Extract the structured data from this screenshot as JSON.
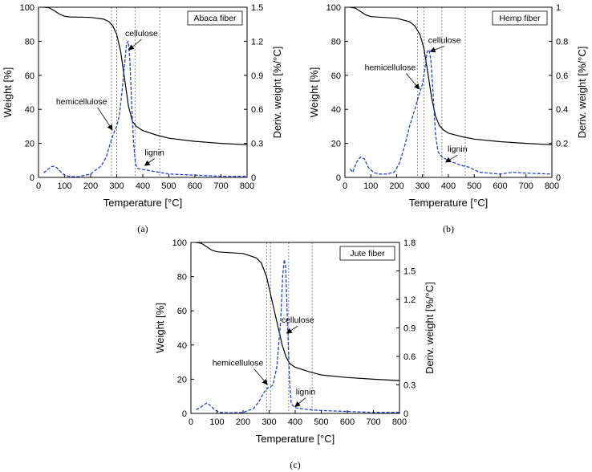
{
  "chart_data": [
    {
      "type": "line",
      "panel_caption": "(a)",
      "legend_label": "Abaca fiber",
      "xlabel": "Temperature [°C]",
      "ylabel_left": "Weight [%]",
      "ylabel_right": "Deriv. weight [%/°C]",
      "xlim": [
        0,
        800
      ],
      "ylim_left": [
        0,
        100
      ],
      "ylim_right": [
        0,
        1.5
      ],
      "x_ticks": [
        "0",
        "100",
        "200",
        "300",
        "400",
        "500",
        "600",
        "700",
        "800"
      ],
      "y_left_ticks": [
        "0",
        "20",
        "40",
        "60",
        "80",
        "100"
      ],
      "y_right_ticks": [
        "0",
        "0.3",
        "0.6",
        "0.9",
        "1.2",
        "1.5"
      ],
      "vlines": [
        280,
        300,
        370,
        465
      ],
      "annotations": [
        {
          "text": "cellulose",
          "x": 395,
          "y": 83,
          "arrow_to": [
            347,
            75
          ]
        },
        {
          "text": "hemicellulose",
          "x": 165,
          "y": 43,
          "arrow_to": [
            283,
            28
          ]
        },
        {
          "text": "lignin",
          "x": 445,
          "y": 13,
          "arrow_to": [
            408,
            7
          ]
        }
      ],
      "series": [
        {
          "name": "Weight",
          "axis": "left",
          "style": "solid",
          "color": "#000000",
          "x": [
            20,
            40,
            60,
            80,
            100,
            120,
            150,
            200,
            250,
            270,
            285,
            300,
            315,
            330,
            345,
            360,
            375,
            400,
            450,
            500,
            600,
            700,
            800
          ],
          "y": [
            100,
            99.7,
            98,
            96,
            94.7,
            94.3,
            94.2,
            94,
            93,
            91.5,
            89,
            84,
            74,
            58,
            42,
            33,
            30,
            27.5,
            25,
            23,
            21.2,
            20,
            19.2
          ]
        },
        {
          "name": "Derivative weight",
          "axis": "right",
          "style": "dashed",
          "color": "#1f3fd1",
          "x": [
            20,
            35,
            50,
            60,
            70,
            85,
            100,
            120,
            150,
            200,
            240,
            260,
            275,
            290,
            300,
            310,
            320,
            330,
            338,
            344,
            350,
            358,
            365,
            372,
            380,
            400,
            450,
            500,
            600,
            700,
            800
          ],
          "y": [
            0.04,
            0.07,
            0.095,
            0.098,
            0.085,
            0.05,
            0.02,
            0.008,
            0.005,
            0.03,
            0.1,
            0.18,
            0.3,
            0.4,
            0.45,
            0.55,
            0.75,
            1.0,
            1.18,
            1.2,
            1.05,
            0.6,
            0.3,
            0.12,
            0.08,
            0.07,
            0.05,
            0.03,
            0.02,
            0.01,
            0.01
          ]
        }
      ]
    },
    {
      "type": "line",
      "panel_caption": "(b)",
      "legend_label": "Hemp fiber",
      "xlabel": "Temperature [°C]",
      "ylabel_left": "Weight [%]",
      "ylabel_right": "Deriv. weight [%/°C]",
      "xlim": [
        0,
        800
      ],
      "ylim_left": [
        0,
        100
      ],
      "ylim_right": [
        0,
        1
      ],
      "x_ticks": [
        "0",
        "100",
        "200",
        "300",
        "400",
        "500",
        "600",
        "700",
        "800"
      ],
      "y_left_ticks": [
        "0",
        "20",
        "40",
        "60",
        "80",
        "100"
      ],
      "y_right_ticks": [
        "0",
        "0.2",
        "0.4",
        "0.6",
        "0.8",
        "1"
      ],
      "vlines": [
        280,
        305,
        375,
        465
      ],
      "annotations": [
        {
          "text": "cellulose",
          "x": 385,
          "y": 79,
          "arrow_to": [
            330,
            74
          ]
        },
        {
          "text": "hemicellulose",
          "x": 175,
          "y": 63,
          "arrow_to": [
            287,
            52
          ]
        },
        {
          "text": "lignin",
          "x": 435,
          "y": 15,
          "arrow_to": [
            390,
            9
          ]
        }
      ],
      "series": [
        {
          "name": "Weight",
          "axis": "left",
          "style": "solid",
          "color": "#000000",
          "x": [
            20,
            40,
            60,
            80,
            100,
            150,
            200,
            250,
            270,
            290,
            305,
            320,
            335,
            350,
            365,
            380,
            400,
            450,
            500,
            600,
            700,
            800
          ],
          "y": [
            100,
            99.5,
            97.5,
            95.5,
            94.5,
            94,
            93.5,
            91.5,
            89,
            84,
            76,
            62,
            47,
            36,
            30.5,
            28,
            26,
            24,
            22.5,
            21,
            20,
            19.2
          ]
        },
        {
          "name": "Derivative weight",
          "axis": "right",
          "style": "dashed",
          "color": "#1f3fd1",
          "x": [
            20,
            30,
            45,
            60,
            75,
            90,
            110,
            130,
            160,
            190,
            210,
            230,
            250,
            270,
            285,
            300,
            310,
            318,
            325,
            332,
            340,
            350,
            360,
            375,
            400,
            450,
            480,
            520,
            600,
            650,
            700,
            800
          ],
          "y": [
            0.05,
            0.03,
            0.09,
            0.12,
            0.11,
            0.06,
            0.03,
            0.02,
            0.02,
            0.03,
            0.08,
            0.18,
            0.3,
            0.4,
            0.48,
            0.55,
            0.65,
            0.74,
            0.75,
            0.69,
            0.52,
            0.25,
            0.15,
            0.12,
            0.1,
            0.07,
            0.06,
            0.03,
            0.02,
            0.03,
            0.025,
            0.02
          ]
        }
      ]
    },
    {
      "type": "line",
      "panel_caption": "(c)",
      "legend_label": "Jute fiber",
      "xlabel": "Temperature [°C]",
      "ylabel_left": "Weight [%]",
      "ylabel_right": "Deriv. weight [%/°C]",
      "xlim": [
        0,
        800
      ],
      "ylim_left": [
        0,
        100
      ],
      "ylim_right": [
        0,
        1.8
      ],
      "x_ticks": [
        "0",
        "100",
        "200",
        "300",
        "400",
        "500",
        "600",
        "700",
        "800"
      ],
      "y_left_ticks": [
        "0",
        "20",
        "40",
        "60",
        "80",
        "100"
      ],
      "y_right_ticks": [
        "0",
        "0.3",
        "0.6",
        "0.9",
        "1.2",
        "1.5",
        "1.8"
      ],
      "vlines": [
        290,
        305,
        375,
        465
      ],
      "annotations": [
        {
          "text": "cellulose",
          "x": 410,
          "y": 53,
          "arrow_to": [
            368,
            47
          ]
        },
        {
          "text": "hemicellulose",
          "x": 180,
          "y": 28,
          "arrow_to": [
            293,
            17
          ]
        },
        {
          "text": "lignin",
          "x": 440,
          "y": 11,
          "arrow_to": [
            400,
            4
          ]
        }
      ],
      "series": [
        {
          "name": "Weight",
          "axis": "left",
          "style": "solid",
          "color": "#000000",
          "x": [
            20,
            40,
            60,
            80,
            100,
            150,
            200,
            250,
            270,
            290,
            305,
            320,
            335,
            350,
            365,
            380,
            400,
            450,
            500,
            600,
            700,
            800
          ],
          "y": [
            100,
            99.5,
            97.5,
            95.5,
            94.5,
            94,
            93.5,
            91,
            88,
            80,
            70,
            60,
            50,
            40,
            33,
            29,
            27,
            24.5,
            22.5,
            21,
            20,
            19.2
          ]
        },
        {
          "name": "Derivative weight",
          "axis": "right",
          "style": "dashed",
          "color": "#1f3fd1",
          "x": [
            20,
            35,
            50,
            60,
            72,
            90,
            110,
            150,
            200,
            240,
            260,
            280,
            295,
            305,
            315,
            330,
            345,
            352,
            358,
            363,
            370,
            378,
            385,
            400,
            450,
            500,
            600,
            700,
            800
          ],
          "y": [
            0.04,
            0.06,
            0.09,
            0.11,
            0.09,
            0.04,
            0.01,
            0.005,
            0.01,
            0.05,
            0.12,
            0.22,
            0.27,
            0.28,
            0.3,
            0.5,
            1.0,
            1.45,
            1.62,
            1.55,
            1.0,
            0.35,
            0.1,
            0.06,
            0.04,
            0.03,
            0.02,
            0.01,
            0.01
          ]
        }
      ]
    }
  ]
}
